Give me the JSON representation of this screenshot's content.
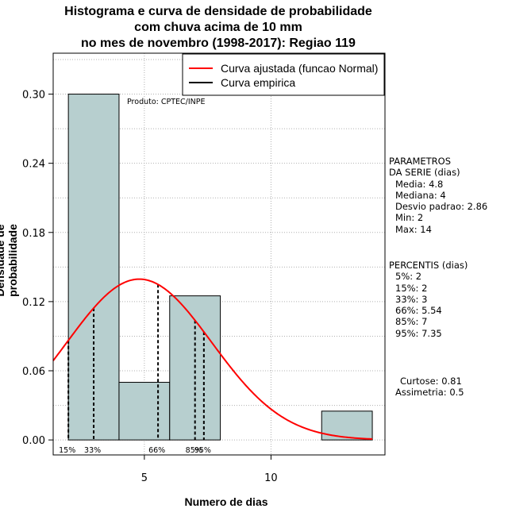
{
  "chart_data": {
    "type": "bar",
    "title_lines": [
      "Histograma e curva de densidade de probabilidade",
      "com chuva acima de 10 mm",
      "no mes de novembro (1998-2017): Regiao 119"
    ],
    "xlabel": "Numero de dias",
    "ylabel": "Densidade de probabilidade",
    "xlim": [
      1.4,
      14.5
    ],
    "ylim": [
      -0.013,
      0.3355
    ],
    "xticks": [
      5,
      10
    ],
    "yticks": [
      0.0,
      0.06,
      0.12,
      0.18,
      0.24,
      0.3
    ],
    "ytick_labels": [
      "0.00",
      "0.06",
      "0.12",
      "0.18",
      "0.24",
      "0.30"
    ],
    "grid": true,
    "bins": [
      {
        "start": 2,
        "end": 4,
        "density": 0.3
      },
      {
        "start": 4,
        "end": 6,
        "density": 0.05
      },
      {
        "start": 6,
        "end": 8,
        "density": 0.125
      },
      {
        "start": 8,
        "end": 10,
        "density": 0.0
      },
      {
        "start": 10,
        "end": 12,
        "density": 0.0
      },
      {
        "start": 12,
        "end": 14,
        "density": 0.025
      }
    ],
    "normal_curve": {
      "mean": 4.8,
      "sd": 2.86
    },
    "percentile_lines": [
      {
        "label": "15%",
        "x": 2
      },
      {
        "label": "33%",
        "x": 3
      },
      {
        "label": "66%",
        "x": 5.54
      },
      {
        "label": "85%",
        "x": 7
      },
      {
        "label": "95%",
        "x": 7.35
      }
    ],
    "annotation": "Produto: CPTEC/INPE",
    "legend": {
      "position": "top-right",
      "entries": [
        {
          "label": "Curva ajustada (funcao Normal)",
          "color": "#ff0000"
        },
        {
          "label": "Curva empirica",
          "color": "#000000"
        }
      ]
    },
    "colors": {
      "bar_fill": "#b7cfcf",
      "curve": "#ff0000",
      "grid": "#b0b0b0"
    }
  },
  "stats": {
    "params_header": [
      "PARAMETROS",
      "DA SERIE (dias)"
    ],
    "params": [
      "Media: 4.8",
      "Mediana: 4",
      "Desvio padrao: 2.86",
      "Min: 2",
      "Max: 14"
    ],
    "percentis_header": "PERCENTIS (dias)",
    "percentis": [
      "5%: 2",
      "15%: 2",
      "33%: 3",
      "66%: 5.54",
      "85%: 7",
      "95%: 7.35"
    ],
    "moments": [
      "Curtose: 0.81",
      "Assimetria: 0.5"
    ]
  }
}
